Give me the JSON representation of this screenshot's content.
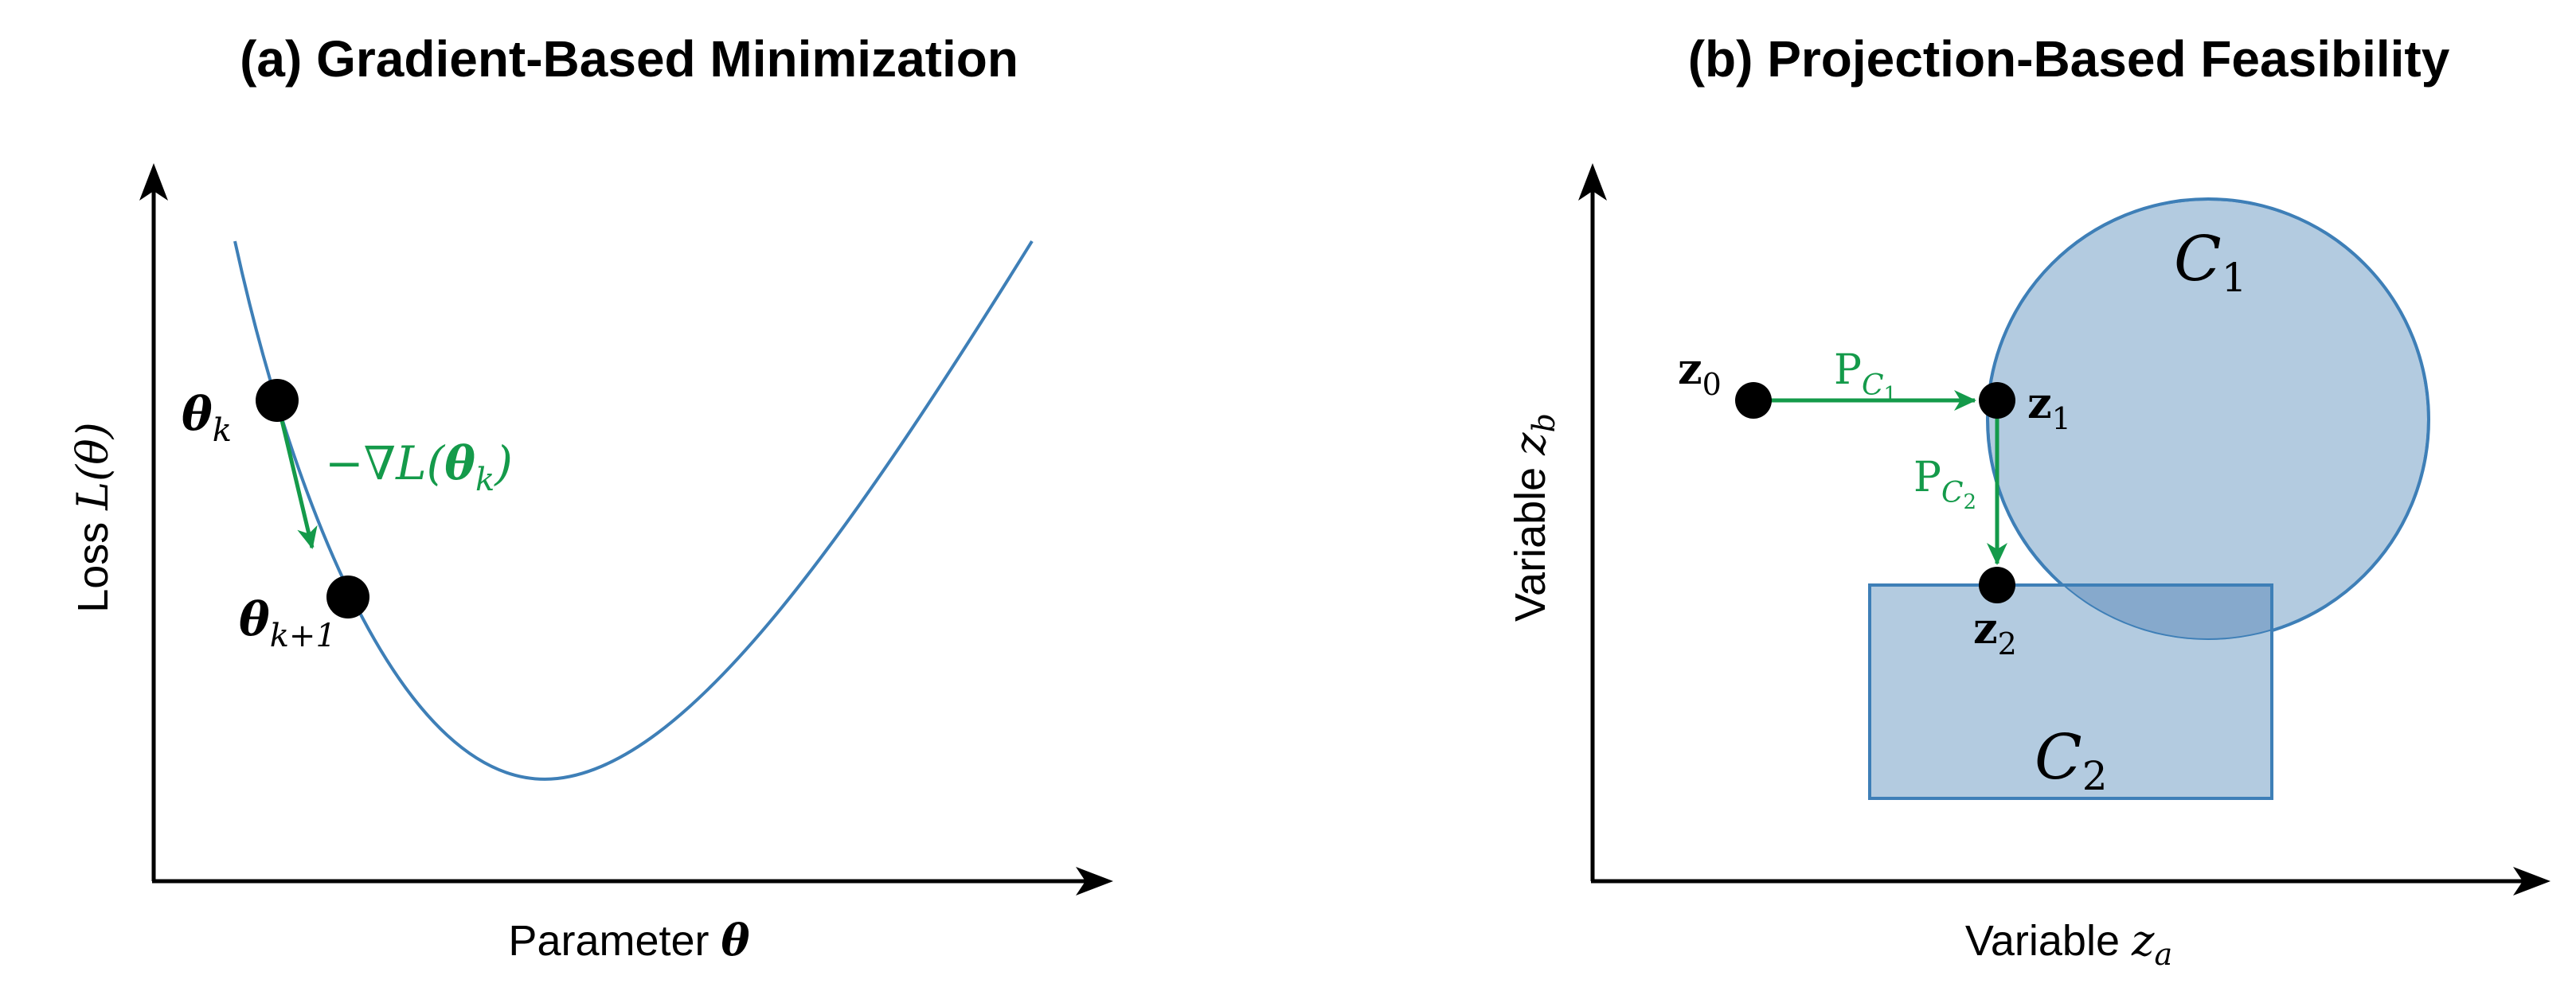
{
  "panel_a": {
    "title": "(a) Gradient-Based Minimization",
    "xlabel_text": "Parameter ",
    "xlabel_symbol": "θ",
    "ylabel_text": "Loss ",
    "ylabel_symbol": "L(θ)",
    "point_k_symbol": "θ",
    "point_k_sub": "k",
    "point_k1_symbol": "θ",
    "point_k1_sub": "k+1",
    "gradient_label_prefix": "−∇L(",
    "gradient_label_symbol": "θ",
    "gradient_label_sub": "k",
    "gradient_label_suffix": ")"
  },
  "panel_b": {
    "title": "(b) Projection-Based Feasibility",
    "xlabel_text": "Variable ",
    "xlabel_symbol": "z",
    "xlabel_sub": "a",
    "ylabel_text": "Variable ",
    "ylabel_symbol": "z",
    "ylabel_sub": "b",
    "z0_symbol": "z",
    "z0_sub": "0",
    "z1_symbol": "z",
    "z1_sub": "1",
    "z2_symbol": "z",
    "z2_sub": "2",
    "set1_symbol": "C",
    "set1_sub": "1",
    "set2_symbol": "C",
    "set2_sub": "2",
    "proj1_symbol": "P",
    "proj1_sub": "C",
    "proj1_subsub": "1",
    "proj2_symbol": "P",
    "proj2_sub": "C",
    "proj2_subsub": "2"
  },
  "colors": {
    "curve": "#3e7fb7",
    "set_fill": "#b3cbe0",
    "set_overlap": "#86a9cc",
    "set_edge": "#3e7fb7",
    "arrow_green": "#149a4a",
    "axis": "#000000"
  }
}
